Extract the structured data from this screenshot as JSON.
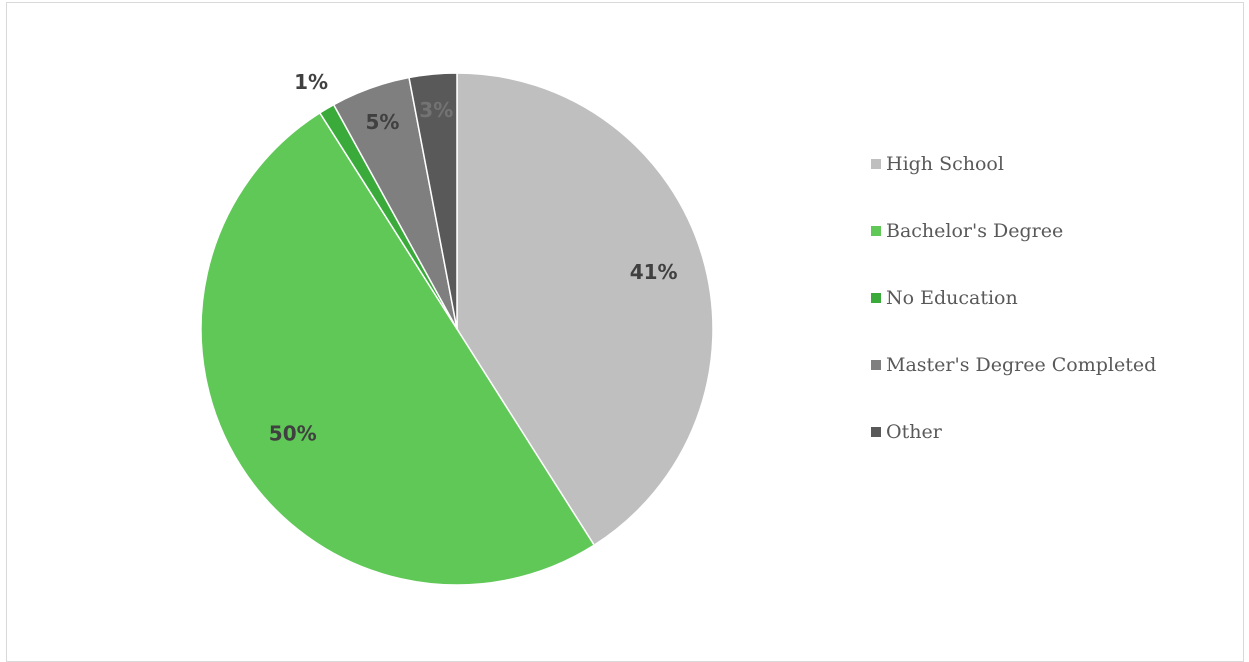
{
  "chart_data": {
    "type": "pie",
    "title": "",
    "slices": [
      {
        "name": "High School",
        "value": 41,
        "label": "41%",
        "color": "#bfbfbf",
        "label_color": "#404040"
      },
      {
        "name": "Bachelor's Degree",
        "value": 50,
        "label": "50%",
        "color": "#5fc857",
        "label_color": "#404040"
      },
      {
        "name": "No Education",
        "value": 1,
        "label": "1%",
        "color": "#3aab3a",
        "label_color": "#404040"
      },
      {
        "name": "Master's Degree Completed",
        "value": 5,
        "label": "5%",
        "color": "#7f7f7f",
        "label_color": "#404040"
      },
      {
        "name": "Other",
        "value": 3,
        "label": "3%",
        "color": "#595959",
        "label_color": "#737373"
      }
    ],
    "legend": {
      "placement": "right",
      "entries": [
        "High School",
        "Bachelor's Degree",
        "No Education",
        "Master's Degree Completed",
        "Other"
      ]
    },
    "colors": {
      "slice_border": "#ffffff",
      "legend_text": "#595959",
      "frame_border": "#d9d9d9"
    }
  }
}
